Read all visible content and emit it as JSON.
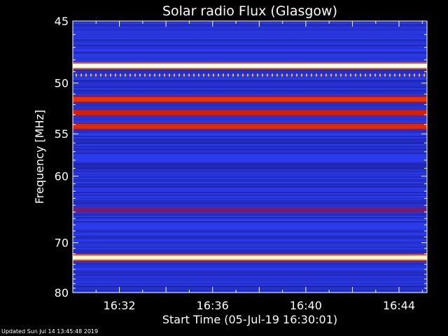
{
  "chart_data": {
    "type": "heatmap",
    "title": "Solar radio Flux (Glasgow)",
    "xlabel": "Start Time (05-Jul-19 16:30:01)",
    "ylabel": "Frequency [MHz]",
    "x_range_minutes": [
      0,
      15.2
    ],
    "x_ticks": [
      {
        "label": "16:32",
        "minute": 2
      },
      {
        "label": "16:36",
        "minute": 6
      },
      {
        "label": "16:40",
        "minute": 10
      },
      {
        "label": "16:44",
        "minute": 14
      }
    ],
    "ylim": [
      45,
      80
    ],
    "y_ticks": [
      45,
      50,
      55,
      60,
      70,
      80
    ],
    "y_scale": "reciprocal",
    "colormap": [
      "#000000",
      "#1a1a8c",
      "#2b3df0",
      "#b00000",
      "#ff4500",
      "#ffd200",
      "#ffffff"
    ],
    "background_intensity": 0.28,
    "bands": [
      {
        "freq": 48.5,
        "intensity": 1.0,
        "note": "saturated white line"
      },
      {
        "freq": 49.3,
        "intensity": 0.8,
        "note": "dotted orange points"
      },
      {
        "freq": 51.5,
        "intensity": 0.62
      },
      {
        "freq": 52.8,
        "intensity": 0.58
      },
      {
        "freq": 54.2,
        "intensity": 0.6
      },
      {
        "freq": 64.7,
        "intensity": 0.42
      },
      {
        "freq": 72.7,
        "intensity": 0.95,
        "note": "yellow-white line"
      }
    ]
  },
  "footer": {
    "updated_text": "Updated Sun Jul 14 13:45:48 2019"
  }
}
